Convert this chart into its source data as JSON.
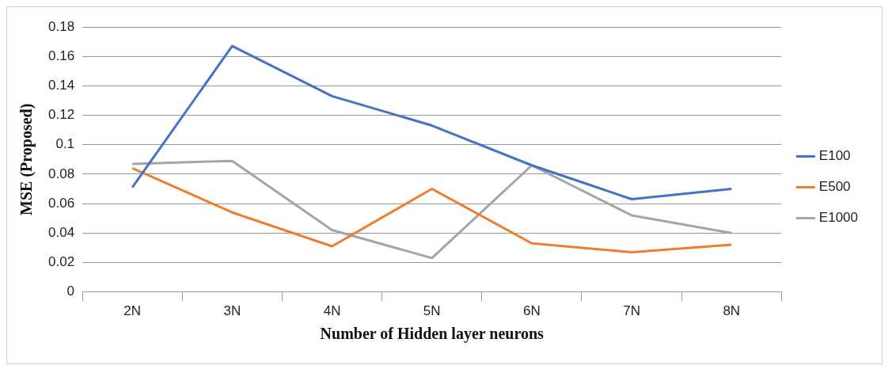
{
  "chart_data": {
    "type": "line",
    "xlabel": "Number of Hidden layer neurons",
    "ylabel": "MSE (Proposed)",
    "categories": [
      "2N",
      "3N",
      "4N",
      "5N",
      "6N",
      "7N",
      "8N"
    ],
    "series": [
      {
        "name": "E100",
        "color": "#4472c4",
        "values": [
          0.071,
          0.167,
          0.133,
          0.113,
          0.086,
          0.063,
          0.07
        ]
      },
      {
        "name": "E500",
        "color": "#ed7d31",
        "values": [
          0.084,
          0.054,
          0.031,
          0.07,
          0.033,
          0.027,
          0.032
        ]
      },
      {
        "name": "E1000",
        "color": "#a5a5a5",
        "values": [
          0.087,
          0.089,
          0.042,
          0.023,
          0.086,
          0.052,
          0.04
        ]
      }
    ],
    "ylim": [
      0,
      0.18
    ],
    "yticks": [
      0,
      0.02,
      0.04,
      0.06,
      0.08,
      0.1,
      0.12,
      0.14,
      0.16,
      0.18
    ],
    "grid": "y",
    "legend": "right",
    "marker": "none",
    "line_style": "solid"
  }
}
